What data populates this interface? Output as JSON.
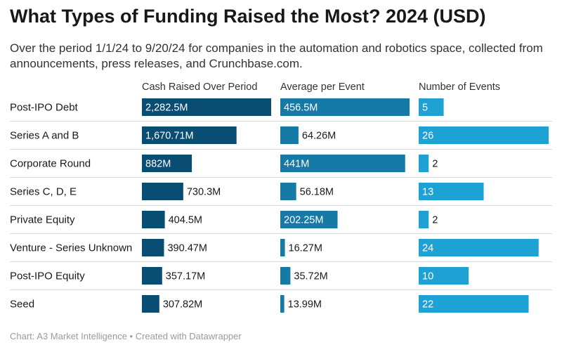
{
  "title": "What Types of Funding Raised the Most? 2024 (USD)",
  "subtitle": "Over the period 1/1/24 to 9/20/24 for companies in the automation and robotics space, collected from announcements, press releases, and Crunchbase.com.",
  "footer": "Chart: A3 Market Intelligence • Created with Datawrapper",
  "colors": {
    "cash": "#0a4d73",
    "average": "#167aa6",
    "events": "#1ea2d3",
    "divider": "#d9d9d9"
  },
  "chart_data": {
    "type": "bar",
    "categories": [
      "Post-IPO Debt",
      "Series A and B",
      "Corporate Round",
      "Series C, D, E",
      "Private Equity",
      "Venture - Series Unknown",
      "Post-IPO Equity",
      "Seed"
    ],
    "series": [
      {
        "name": "Cash Raised Over Period",
        "values": [
          2282.5,
          1670.71,
          882,
          730.3,
          404.5,
          390.47,
          357.17,
          307.82
        ],
        "labels": [
          "2,282.5M",
          "1,670.71M",
          "882M",
          "730.3M",
          "404.5M",
          "390.47M",
          "357.17M",
          "307.82M"
        ]
      },
      {
        "name": "Average per Event",
        "values": [
          456.5,
          64.26,
          441,
          56.18,
          202.25,
          16.27,
          35.72,
          13.99
        ],
        "labels": [
          "456.5M",
          "64.26M",
          "441M",
          "56.18M",
          "202.25M",
          "16.27M",
          "35.72M",
          "13.99M"
        ]
      },
      {
        "name": "Number of Events",
        "values": [
          5,
          26,
          2,
          13,
          2,
          24,
          10,
          22
        ],
        "labels": [
          "5",
          "26",
          "2",
          "13",
          "2",
          "24",
          "10",
          "22"
        ]
      }
    ]
  }
}
